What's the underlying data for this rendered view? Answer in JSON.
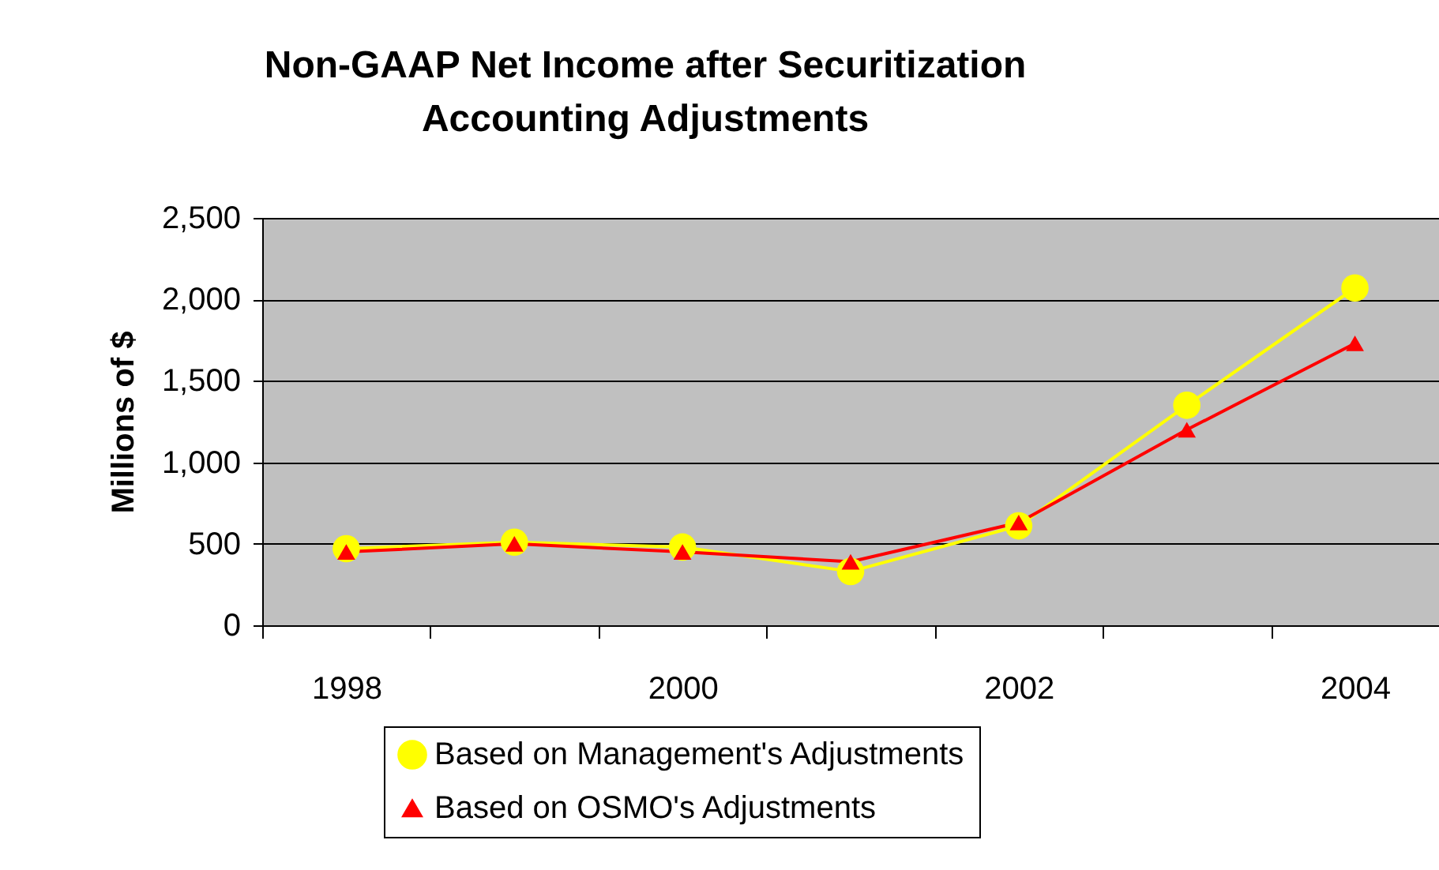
{
  "chart_data": {
    "type": "line",
    "title": "Non-GAAP Net Income after Securitization Accounting Adjustments",
    "ylabel": "Millions of $",
    "categories": [
      "1998",
      null,
      "2000",
      null,
      "2002",
      null,
      "2004"
    ],
    "series": [
      {
        "name": "Based on Management's Adjustments",
        "color": "#ffff00",
        "marker": "circle",
        "values": [
          470,
          510,
          480,
          330,
          610,
          1350,
          2070
        ]
      },
      {
        "name": "Based on OSMO's Adjustments",
        "color": "#ff0000",
        "marker": "triangle",
        "values": [
          450,
          500,
          450,
          390,
          630,
          1200,
          1730
        ]
      }
    ],
    "ylim": [
      0,
      2500
    ],
    "yticks": [
      0,
      500,
      {
        "value": 1000,
        "label": "1,000"
      },
      {
        "value": 1500,
        "label": "1,500"
      },
      {
        "value": 2000,
        "label": "2,000"
      },
      {
        "value": 2500,
        "label": "2,500"
      }
    ],
    "grid": "y",
    "legend": "bottom",
    "line_style": "solid"
  }
}
